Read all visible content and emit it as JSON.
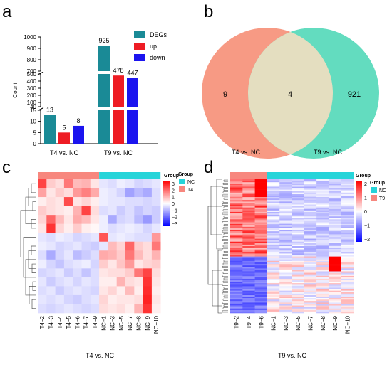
{
  "panels": {
    "a": "a",
    "b": "b",
    "c": "c",
    "d": "d"
  },
  "chart_data": [
    {
      "type": "bar",
      "panel": "a",
      "title": "",
      "ylabel": "Count",
      "xlabel": "",
      "categories": [
        "T4 vs. NC",
        "T9 vs. NC"
      ],
      "series": [
        {
          "name": "DEGs",
          "color": "#1a8a96",
          "values": [
            13,
            925
          ]
        },
        {
          "name": "up",
          "color": "#ee1c24",
          "values": [
            5,
            478
          ]
        },
        {
          "name": "down",
          "color": "#1b14ef",
          "values": [
            8,
            447
          ]
        }
      ],
      "axis_breaks": [
        [
          15,
          40
        ],
        [
          500,
          700
        ]
      ],
      "y_segments": [
        [
          0,
          15
        ],
        [
          40,
          500
        ],
        [
          700,
          1000
        ]
      ],
      "yticks": [
        [
          0,
          5,
          10,
          15
        ],
        [
          40,
          100,
          200,
          300,
          400,
          500
        ],
        [
          700,
          800,
          900,
          1000
        ]
      ],
      "legend": "top-right"
    },
    {
      "type": "venn",
      "panel": "b",
      "sets": [
        {
          "label": "T4 vs. NC",
          "only": 9,
          "color": "#f79a84"
        },
        {
          "label": "T9 vs. NC",
          "only": 921,
          "color": "#63dcbf"
        }
      ],
      "intersection": 4,
      "intersection_color": "#e4dec0"
    },
    {
      "type": "heatmap",
      "panel": "c",
      "xlabel": "T4 vs. NC",
      "columns": [
        "T4−2",
        "T4−3",
        "T4−4",
        "T4−5",
        "T4−6",
        "T4−7",
        "T4−9",
        "NC−1",
        "NC−3",
        "NC−5",
        "NC−7",
        "NC−8",
        "NC−9",
        "NC−10"
      ],
      "groups": [
        {
          "name": "T4",
          "start": 0,
          "count": 7,
          "color": "#f7877e"
        },
        {
          "name": "NC",
          "start": 7,
          "count": 7,
          "color": "#26d4d9"
        }
      ],
      "legend_title": "Group",
      "colorbar_ticks": [
        "3",
        "2",
        "1",
        "0",
        "−1",
        "−2",
        "−3"
      ],
      "color_range": [
        -3,
        3
      ],
      "matrix": [
        [
          2.2,
          0.6,
          0.4,
          1.6,
          0.8,
          0.9,
          0.3,
          -0.3,
          -0.4,
          -0.2,
          -0.3,
          -0.5,
          -0.4,
          -0.3
        ],
        [
          1.1,
          0.3,
          0.6,
          0.4,
          1.2,
          1.5,
          1.0,
          -0.2,
          -0.3,
          -0.5,
          -1.1,
          -0.8,
          -1.0,
          -0.4
        ],
        [
          0.2,
          0.4,
          0.3,
          2.1,
          0.3,
          0.5,
          0.2,
          -0.2,
          -0.3,
          -0.3,
          -0.4,
          -0.4,
          -0.5,
          -0.4
        ],
        [
          0.6,
          0.4,
          0.3,
          0.2,
          0.9,
          2.2,
          0.4,
          -0.4,
          -0.3,
          -0.6,
          -0.4,
          -0.7,
          -0.5,
          -0.6
        ],
        [
          0.5,
          1.8,
          0.8,
          0.3,
          1.0,
          0.8,
          0.3,
          -0.2,
          -1.0,
          -0.5,
          -0.4,
          -0.8,
          -1.2,
          -0.6
        ],
        [
          0.3,
          2.4,
          0.5,
          0.2,
          0.6,
          0.2,
          0.1,
          -0.2,
          -0.4,
          -0.3,
          -0.2,
          -0.3,
          -0.5,
          -0.3
        ],
        [
          -0.3,
          -0.4,
          -0.2,
          -0.3,
          -0.5,
          -0.4,
          -0.3,
          2.0,
          -0.3,
          -0.2,
          -0.3,
          -0.4,
          -0.4,
          1.2
        ],
        [
          -0.2,
          -0.3,
          -0.5,
          -0.4,
          -0.3,
          -0.5,
          -0.6,
          -0.3,
          0.8,
          0.5,
          1.8,
          0.6,
          0.4,
          1.6
        ],
        [
          -0.4,
          -1.0,
          -0.5,
          -0.3,
          -0.8,
          -0.6,
          -0.4,
          1.0,
          0.9,
          0.6,
          1.6,
          0.8,
          0.4,
          0.9
        ],
        [
          -0.2,
          -0.5,
          -0.7,
          -0.4,
          -0.3,
          -0.2,
          -0.5,
          0.6,
          0.3,
          0.7,
          1.2,
          0.3,
          0.5,
          0.6
        ],
        [
          -0.5,
          -0.4,
          -0.3,
          -0.6,
          -0.4,
          -0.7,
          -0.4,
          0.3,
          0.4,
          0.4,
          0.6,
          1.6,
          2.2,
          0.4
        ],
        [
          -0.3,
          -0.6,
          -0.4,
          -0.3,
          -0.5,
          -0.3,
          -0.4,
          0.2,
          0.2,
          0.9,
          0.4,
          0.3,
          2.4,
          0.3
        ],
        [
          -0.4,
          -0.3,
          -0.6,
          -0.4,
          -0.3,
          -0.4,
          -0.5,
          0.3,
          0.5,
          0.2,
          0.8,
          0.2,
          2.5,
          0.2
        ],
        [
          -0.3,
          -0.4,
          -0.3,
          -0.5,
          -0.6,
          -0.4,
          -0.3,
          0.5,
          0.2,
          0.3,
          0.3,
          0.4,
          2.6,
          0.3
        ],
        [
          -0.4,
          -0.5,
          -0.4,
          -0.3,
          -0.4,
          -0.5,
          -0.4,
          0.4,
          0.3,
          0.4,
          0.2,
          0.9,
          2.4,
          0.2
        ]
      ]
    },
    {
      "type": "heatmap",
      "panel": "d",
      "xlabel": "T9 vs. NC",
      "columns": [
        "T9−2",
        "T9−4",
        "T9−6",
        "NC−1",
        "NC−3",
        "NC−5",
        "NC−7",
        "NC−8",
        "NC−9",
        "NC−10"
      ],
      "groups": [
        {
          "name": "T9",
          "start": 0,
          "count": 3,
          "color": "#f7877e"
        },
        {
          "name": "NC",
          "start": 3,
          "count": 7,
          "color": "#26d4d9"
        }
      ],
      "legend_title": "Group",
      "colorbar_ticks": [
        "2",
        "1",
        "0",
        "−1",
        "−2"
      ],
      "color_range": [
        -2.5,
        2.5
      ]
    }
  ]
}
